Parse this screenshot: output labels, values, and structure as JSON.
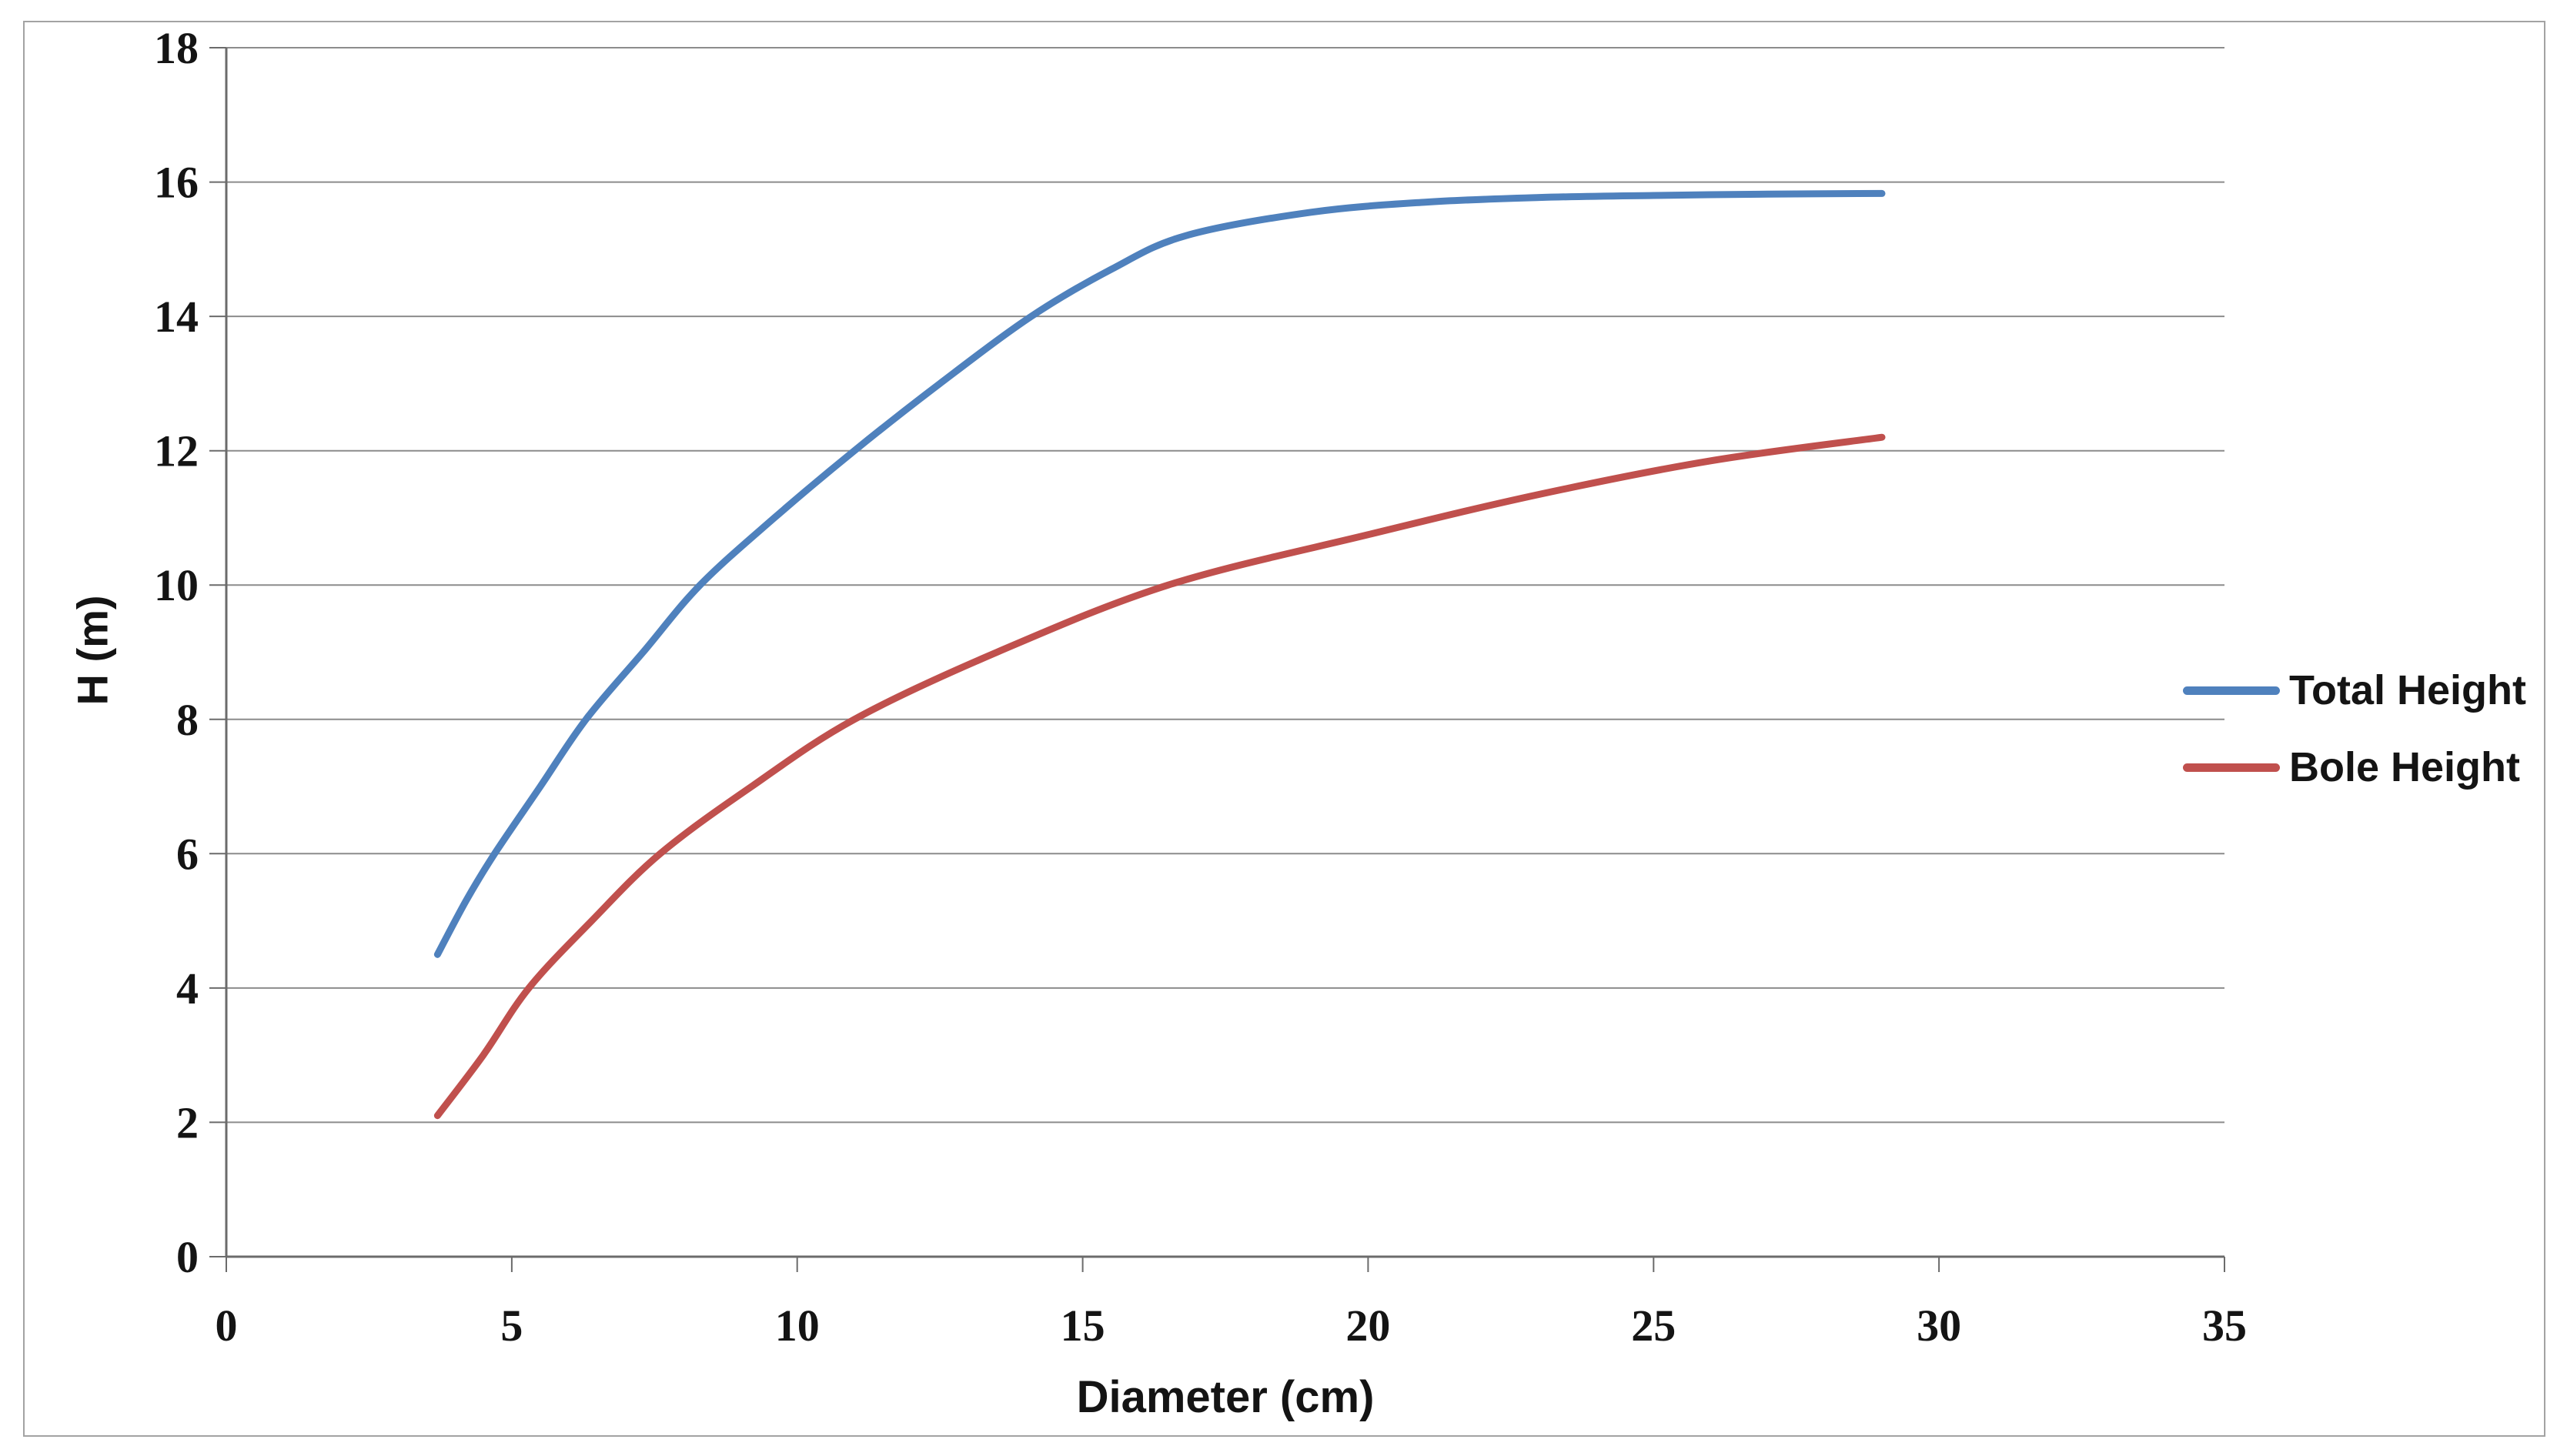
{
  "chart_data": {
    "type": "line",
    "title": "",
    "xlabel": "Diameter (cm)",
    "ylabel": "H (m)",
    "xlim": [
      0,
      35
    ],
    "ylim": [
      0,
      18
    ],
    "xticks": [
      0,
      5,
      10,
      15,
      20,
      25,
      30,
      35
    ],
    "yticks": [
      0,
      2,
      4,
      6,
      8,
      10,
      12,
      14,
      16,
      18
    ],
    "grid": "horizontal-only",
    "legend_position": "right",
    "series": [
      {
        "name": "Total Height",
        "color": "#4f81bd",
        "x": [
          3.7,
          4.2,
          4.7,
          5.5,
          6.3,
          7.3,
          8.3,
          9.6,
          11.0,
          12.5,
          14.1,
          15.5,
          16.8,
          19.0,
          21.0,
          23.0,
          25.0,
          27.0,
          29.0
        ],
        "y": [
          4.5,
          5.3,
          6.0,
          7.0,
          8.0,
          9.0,
          10.0,
          11.0,
          12.0,
          13.0,
          14.0,
          14.7,
          15.2,
          15.55,
          15.7,
          15.77,
          15.8,
          15.82,
          15.83
        ]
      },
      {
        "name": "Bole Height",
        "color": "#c0504d",
        "x": [
          3.7,
          4.5,
          5.3,
          6.4,
          7.6,
          9.2,
          11.0,
          13.5,
          16.5,
          20.0,
          23.0,
          26.0,
          29.0
        ],
        "y": [
          2.1,
          3.0,
          4.0,
          5.0,
          6.0,
          7.0,
          8.0,
          9.0,
          10.0,
          10.75,
          11.35,
          11.85,
          12.2
        ]
      }
    ]
  }
}
